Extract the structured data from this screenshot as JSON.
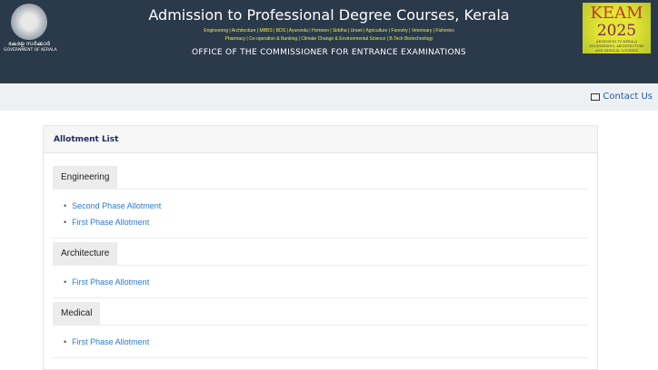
{
  "header": {
    "title": "Admission to Professional Degree Courses, Kerala",
    "courses_line1": "Engineering | Architecture | MBBS | BDS | Ayurveda | Homoeo | Siddha | Unani | Agriculture | Forestry | Veterinary | Fisheries",
    "courses_line2": "Pharmacy | Co-operation & Banking | Climate Change & Environmental Science | B.Tech Biotechnology",
    "office": "OFFICE OF THE COMMISSIONER FOR ENTRANCE EXAMINATIONS",
    "logo_ml": "കേരള സർക്കാർ",
    "logo_text": "GOVERNMENT OF KERALA",
    "keam": {
      "name": "KEAM",
      "year": "2025",
      "tagline": "ADMISSION TO KERALA ENGINEERING, ARCHITECTURE AND MEDICAL COURSES"
    }
  },
  "subbar": {
    "contact_label": "Contact Us",
    "contact_icon": "contact-card-icon"
  },
  "card": {
    "title": "Allotment List",
    "sections": [
      {
        "name": "Engineering",
        "links": [
          "Second Phase Allotment",
          "First Phase Allotment"
        ]
      },
      {
        "name": "Architecture",
        "links": [
          "First Phase Allotment"
        ]
      },
      {
        "name": "Medical",
        "links": [
          "First Phase Allotment"
        ]
      }
    ]
  },
  "colors": {
    "header_bg": "#2b3a4a",
    "course_text": "#f0e84a",
    "link": "#2a7ad6"
  }
}
